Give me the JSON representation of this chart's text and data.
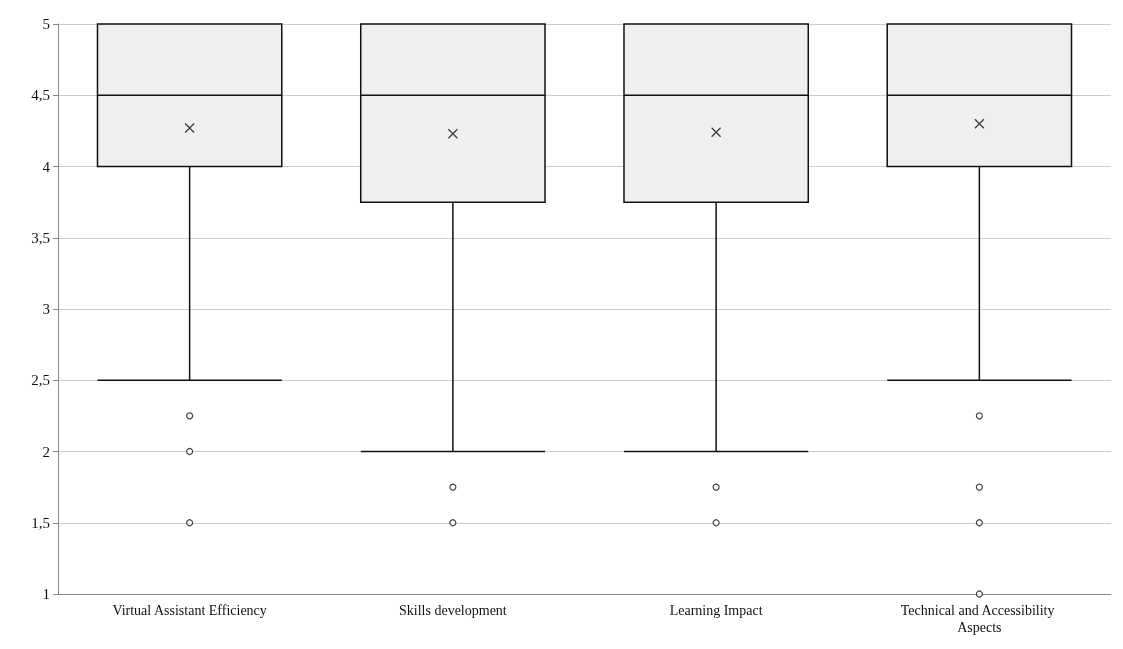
{
  "chart_data": {
    "type": "box",
    "categories": [
      "Virtual Assistant Efficiency",
      "Skills development",
      "Learning Impact",
      "Technical and Accessibility Aspects"
    ],
    "boxes": [
      {
        "low": 2.5,
        "q1": 4,
        "median": 4.5,
        "q3": 5,
        "high": 5,
        "mean": 4.27,
        "outliers": [
          2.25,
          2,
          1.5
        ]
      },
      {
        "low": 2,
        "q1": 3.75,
        "median": 4.5,
        "q3": 5,
        "high": 5,
        "mean": 4.23,
        "outliers": [
          1.75,
          1.5
        ]
      },
      {
        "low": 2,
        "q1": 3.75,
        "median": 4.5,
        "q3": 5,
        "high": 5,
        "mean": 4.24,
        "outliers": [
          1.75,
          1.5
        ]
      },
      {
        "low": 2.5,
        "q1": 4,
        "median": 4.5,
        "q3": 5,
        "high": 5,
        "mean": 4.3,
        "outliers": [
          2.25,
          1.75,
          1.5,
          1
        ]
      }
    ],
    "ylim": [
      1,
      5
    ],
    "yticks": [
      1,
      {
        "value": 1.5,
        "label": "1,5"
      },
      2,
      {
        "value": 2.5,
        "label": "2,5"
      },
      3,
      {
        "value": 3.5,
        "label": "3,5"
      },
      4,
      {
        "value": 4.5,
        "label": "4,5"
      },
      5
    ],
    "grid": "y"
  }
}
